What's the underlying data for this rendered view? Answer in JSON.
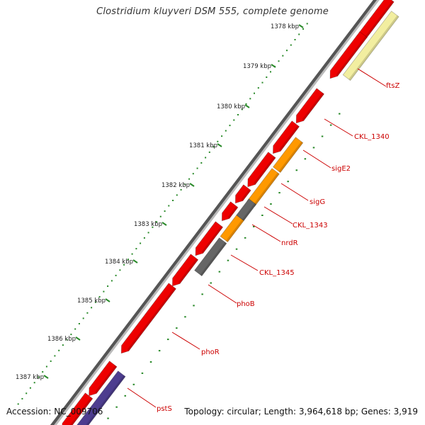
{
  "title": "Clostridium kluyveri DSM 555, complete genome",
  "accession": "Accession: NC_009706",
  "summary": "Topology: circular; Length: 3,964,618 bp; Genes: 3,919",
  "colors": {
    "backbone": "#8a8a8a",
    "tick_dots": "#2a8a2a",
    "label_red": "#cc0000",
    "gene_red": "#ee0000",
    "gene_orange": "#ff9900",
    "gene_gray": "#666666",
    "gene_yellow": "#f2eea0",
    "gene_purple": "#4d3d8f"
  },
  "scale_labels": [
    "1378 kbp",
    "1379 kbp",
    "1380 kbp",
    "1381 kbp",
    "1382 kbp",
    "1383 kbp",
    "1384 kbp",
    "1385 kbp",
    "1386 kbp",
    "1387 kbp"
  ],
  "gene_labels": [
    "ftsZ",
    "CKL_1340",
    "sigE2",
    "sigG",
    "CKL_1343",
    "nrdR",
    "CKL_1345",
    "phoB",
    "phoR",
    "pstS"
  ]
}
